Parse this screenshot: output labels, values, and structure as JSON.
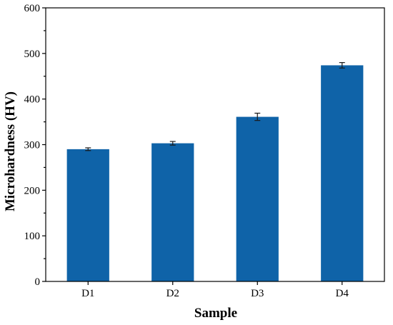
{
  "chart_data": {
    "type": "bar",
    "categories": [
      "D1",
      "D2",
      "D3",
      "D4"
    ],
    "values": [
      290,
      303,
      361,
      474
    ],
    "errors": [
      3,
      4,
      8,
      6
    ],
    "xlabel": "Sample",
    "ylabel": "Microhardness (HV)",
    "ylim": [
      0,
      600
    ],
    "yticks": [
      0,
      100,
      200,
      300,
      400,
      500,
      600
    ],
    "grid": false,
    "bar_color": "#0f63a8"
  }
}
